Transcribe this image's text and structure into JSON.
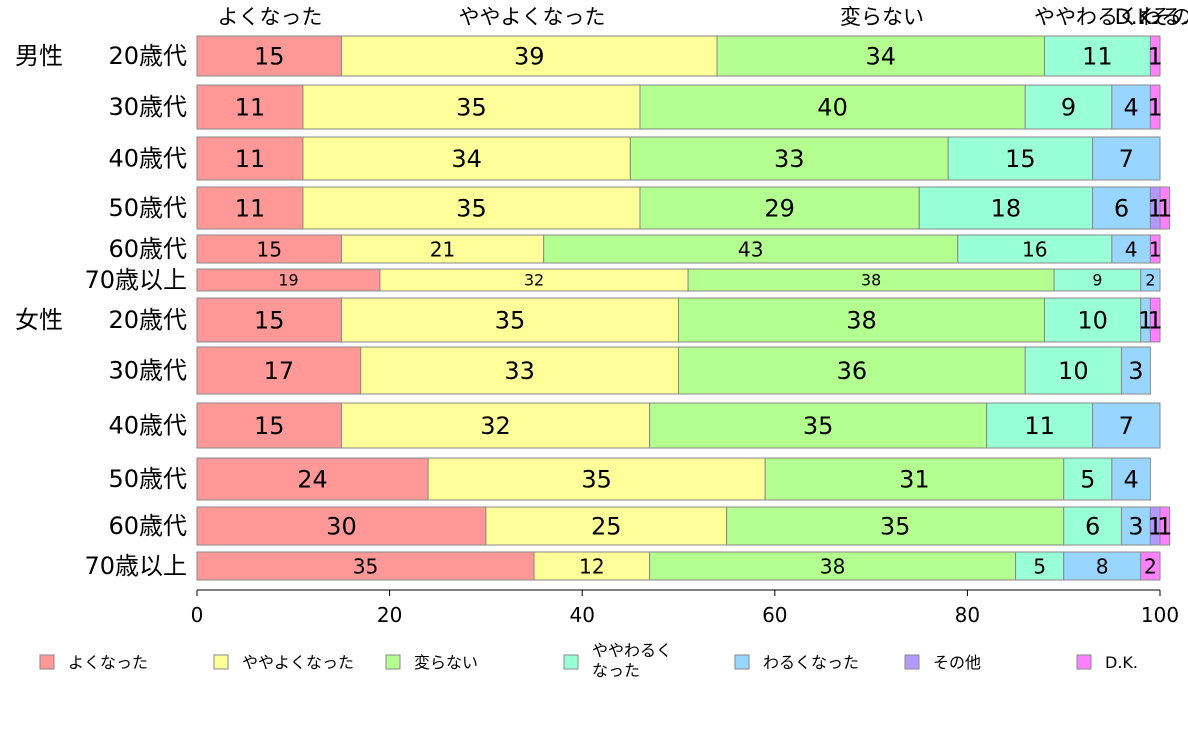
{
  "chart_data": {
    "type": "bar",
    "orientation": "horizontal",
    "stacked": "percent",
    "xlim": [
      0,
      100
    ],
    "x_ticks": [
      "0",
      "20",
      "40",
      "60",
      "80",
      "100"
    ],
    "top_labels": [
      "よくなった",
      "ややよくなった",
      "変らない",
      "ややわるく…",
      "わる…",
      "その…",
      "D.K."
    ],
    "groups": [
      {
        "label": "男性",
        "rows": [
          0,
          1,
          2,
          3,
          4,
          5
        ]
      },
      {
        "label": "女性",
        "rows": [
          6,
          7,
          8,
          9,
          10,
          11
        ]
      }
    ],
    "categories": [
      "20歳代",
      "30歳代",
      "40歳代",
      "50歳代",
      "60歳代",
      "70歳以上",
      "20歳代",
      "30歳代",
      "40歳代",
      "50歳代",
      "60歳代",
      "70歳以上"
    ],
    "series": [
      {
        "name": "よくなった",
        "color": "#ff9896",
        "values": [
          15,
          11,
          11,
          11,
          15,
          19,
          15,
          17,
          15,
          24,
          30,
          35
        ]
      },
      {
        "name": "ややよくなった",
        "color": "#ffff99",
        "values": [
          39,
          35,
          34,
          35,
          21,
          32,
          35,
          33,
          32,
          35,
          25,
          12
        ]
      },
      {
        "name": "変らない",
        "color": "#b3ff8f",
        "values": [
          34,
          40,
          33,
          29,
          43,
          38,
          38,
          36,
          35,
          31,
          35,
          38
        ]
      },
      {
        "name": "ややわるくなった",
        "color": "#99ffd6",
        "values": [
          11,
          9,
          15,
          18,
          16,
          9,
          10,
          10,
          11,
          5,
          6,
          5
        ]
      },
      {
        "name": "わるくなった",
        "color": "#99d6ff",
        "values": [
          0,
          4,
          7,
          6,
          4,
          2,
          1,
          3,
          7,
          4,
          3,
          8
        ]
      },
      {
        "name": "その他",
        "color": "#b399ff",
        "values": [
          0,
          0,
          0,
          1,
          0,
          0,
          0,
          0,
          0,
          0,
          1,
          0
        ]
      },
      {
        "name": "D.K.",
        "color": "#ff80ff",
        "values": [
          1,
          1,
          0,
          1,
          1,
          0,
          1,
          0,
          0,
          0,
          1,
          2
        ]
      }
    ],
    "legend": {
      "position": "bottom",
      "entries": [
        "よくなった",
        "ややよくなった",
        "変らない",
        "ややわるく\nなった",
        "わるくなった",
        "その他",
        "D.K."
      ]
    }
  }
}
